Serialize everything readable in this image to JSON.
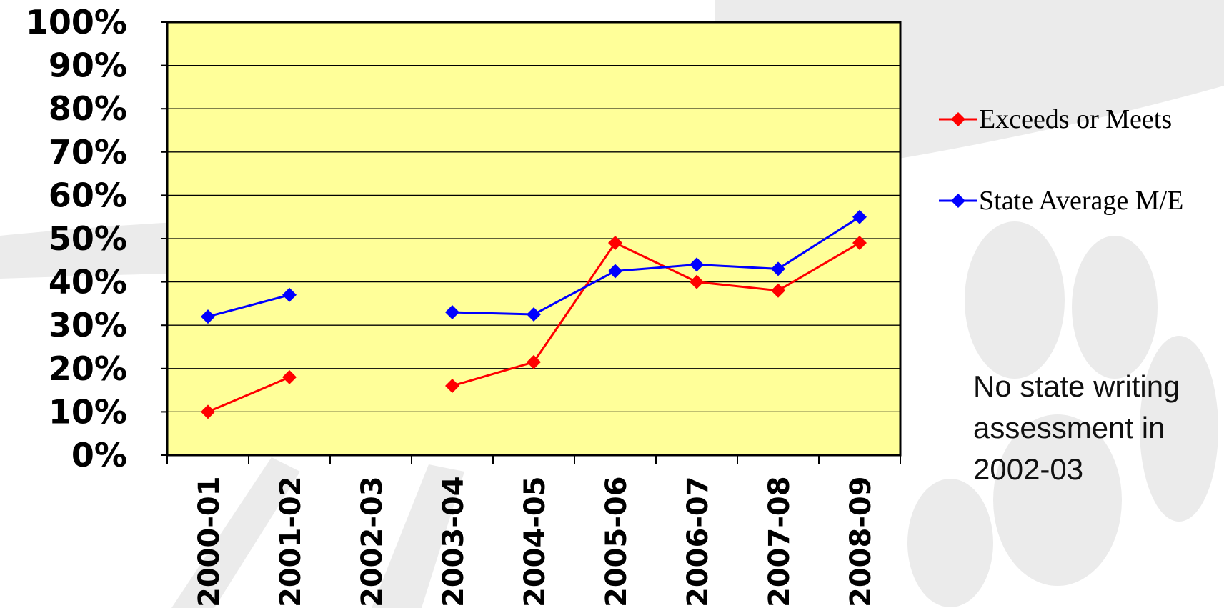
{
  "chart_data": {
    "type": "line",
    "categories": [
      "2000-01",
      "2001-02",
      "2002-03",
      "2003-04",
      "2004-05",
      "2005-06",
      "2006-07",
      "2007-08",
      "2008-09"
    ],
    "series": [
      {
        "name": "Exceeds or Meets",
        "color": "#ff0000",
        "values": [
          10,
          18,
          null,
          16,
          21.5,
          49,
          40,
          38,
          49
        ]
      },
      {
        "name": "State Average M/E",
        "color": "#0000ff",
        "values": [
          32,
          37,
          null,
          33,
          32.5,
          42.5,
          44,
          43,
          55
        ]
      }
    ],
    "y_ticks": [
      "0%",
      "10%",
      "20%",
      "30%",
      "40%",
      "50%",
      "60%",
      "70%",
      "80%",
      "90%",
      "100%"
    ],
    "ylim": [
      0,
      100
    ],
    "grid": true,
    "plot_background": "#ffff99",
    "legend_position": "right",
    "title": "",
    "xlabel": "",
    "ylabel": ""
  },
  "annotation": "No state writing assessment in 2002-03"
}
